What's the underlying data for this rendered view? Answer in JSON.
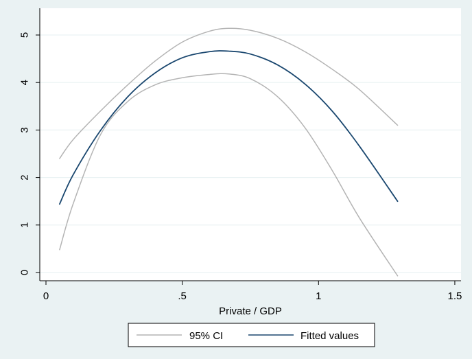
{
  "chart_data": {
    "type": "line",
    "title": "",
    "xlabel": "Private / GDP",
    "ylabel": "",
    "xlim": [
      -0.05,
      1.55
    ],
    "ylim": [
      -0.15,
      5.35
    ],
    "x_ticks": [
      {
        "value": 0,
        "label": "0"
      },
      {
        "value": 0.5,
        "label": ".5"
      },
      {
        "value": 1,
        "label": "1"
      },
      {
        "value": 1.5,
        "label": "1.5"
      }
    ],
    "y_ticks": [
      {
        "value": 0,
        "label": "0"
      },
      {
        "value": 1,
        "label": "1"
      },
      {
        "value": 2,
        "label": "2"
      },
      {
        "value": 3,
        "label": "3"
      },
      {
        "value": 4,
        "label": "4"
      },
      {
        "value": 5,
        "label": "5"
      }
    ],
    "grid": "horizontal",
    "legend_position": "bottom",
    "legend_entries": [
      "95% CI",
      "Fitted values"
    ],
    "series": [
      {
        "name": "95% CI",
        "role": "ci_upper",
        "color": "#b4b4b4",
        "x": [
          0.05,
          0.1,
          0.2,
          0.3,
          0.4,
          0.5,
          0.6,
          0.67,
          0.75,
          0.85,
          0.95,
          1.05,
          1.15,
          1.29
        ],
        "y": [
          2.4,
          2.8,
          3.4,
          3.95,
          4.45,
          4.85,
          5.08,
          5.14,
          5.1,
          4.93,
          4.65,
          4.28,
          3.85,
          3.1
        ]
      },
      {
        "name": "95% CI",
        "role": "ci_lower",
        "color": "#b4b4b4",
        "x": [
          0.05,
          0.1,
          0.2,
          0.3,
          0.4,
          0.5,
          0.6,
          0.67,
          0.75,
          0.85,
          0.95,
          1.05,
          1.15,
          1.29
        ],
        "y": [
          0.48,
          1.45,
          2.9,
          3.6,
          3.95,
          4.1,
          4.17,
          4.18,
          4.08,
          3.7,
          3.05,
          2.15,
          1.15,
          -0.07
        ]
      },
      {
        "name": "Fitted values",
        "role": "fit",
        "color": "#1a476f",
        "x": [
          0.05,
          0.1,
          0.2,
          0.3,
          0.4,
          0.5,
          0.6,
          0.67,
          0.75,
          0.85,
          0.95,
          1.05,
          1.15,
          1.29
        ],
        "y": [
          1.44,
          2.06,
          2.99,
          3.7,
          4.2,
          4.52,
          4.65,
          4.66,
          4.6,
          4.37,
          3.97,
          3.4,
          2.66,
          1.5
        ]
      }
    ]
  },
  "legend": {
    "ci_label": "95% CI",
    "fit_label": "Fitted values"
  },
  "colors": {
    "background": "#eaf2f3",
    "plot_background": "#ffffff",
    "grid": "#eaf2f3",
    "ci": "#b4b4b4",
    "fit": "#1a476f"
  }
}
